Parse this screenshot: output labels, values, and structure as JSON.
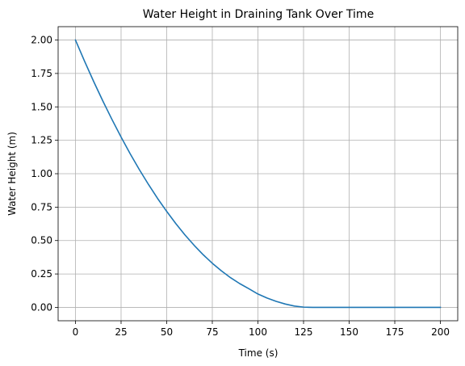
{
  "chart_data": {
    "type": "line",
    "title": "Water Height in Draining Tank Over Time",
    "xlabel": "Time (s)",
    "ylabel": "Water Height (m)",
    "xlim": [
      -9.5,
      209.5
    ],
    "ylim": [
      -0.1,
      2.1
    ],
    "grid": true,
    "xticks": [
      0,
      25,
      50,
      75,
      100,
      125,
      150,
      175,
      200
    ],
    "xtick_labels": [
      "0",
      "25",
      "50",
      "75",
      "100",
      "125",
      "150",
      "175",
      "200"
    ],
    "yticks": [
      0.0,
      0.25,
      0.5,
      0.75,
      1.0,
      1.25,
      1.5,
      1.75,
      2.0
    ],
    "ytick_labels": [
      "0.00",
      "0.25",
      "0.50",
      "0.75",
      "1.00",
      "1.25",
      "1.50",
      "1.75",
      "2.00"
    ],
    "series": [
      {
        "color": "#1f77b4",
        "x": [
          0,
          5,
          10,
          15,
          20,
          25,
          30,
          35,
          40,
          45,
          50,
          55,
          60,
          65,
          70,
          75,
          80,
          85,
          90,
          95,
          100,
          105,
          110,
          115,
          120,
          125,
          130,
          140,
          150,
          160,
          170,
          180,
          190,
          200
        ],
        "y": [
          2.0,
          1.841,
          1.689,
          1.544,
          1.406,
          1.274,
          1.149,
          1.031,
          0.92,
          0.815,
          0.718,
          0.627,
          0.542,
          0.465,
          0.394,
          0.33,
          0.273,
          0.222,
          0.178,
          0.14,
          0.1,
          0.07,
          0.045,
          0.025,
          0.01,
          0.002,
          0.0,
          0.0,
          0.0,
          0.0,
          0.0,
          0.0,
          0.0,
          0.0
        ]
      }
    ]
  }
}
